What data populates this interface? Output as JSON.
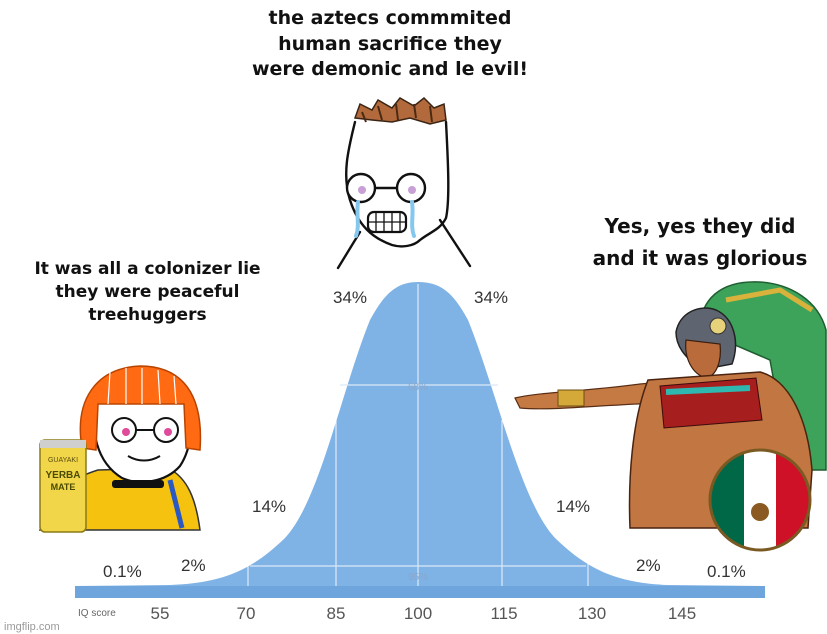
{
  "captions": {
    "top": "the aztecs commmited\nhuman sacrifice they\nwere demonic and le evil!",
    "left": "It was all a colonizer lie\nthey were peaceful\ntreehuggers",
    "right": "Yes, yes they did\nand it was glorious"
  },
  "percent_labels": {
    "left_tail": "0.1%",
    "left_2": "2%",
    "left_14": "14%",
    "left_34": "34%",
    "right_34": "34%",
    "right_14": "14%",
    "right_2": "2%",
    "right_tail": "0.1%",
    "inner_68": "68%",
    "inner_95": "95%"
  },
  "axis": {
    "label": "IQ score",
    "ticks": [
      "55",
      "70",
      "85",
      "100",
      "115",
      "130",
      "145"
    ]
  },
  "can": {
    "brand_top": "GUAYAKI",
    "brand_line1": "YERBA",
    "brand_line2": "MATE"
  },
  "watermark": "imgflip.com",
  "colors": {
    "curve": "#7fb2e5",
    "axis_bar": "#6fa5dd",
    "hair": "#ff6a13",
    "shirt": "#f5c210",
    "headdress": "#3da35a"
  }
}
